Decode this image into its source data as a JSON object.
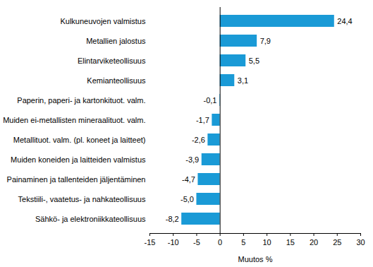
{
  "chart_data": {
    "type": "bar",
    "orientation": "horizontal",
    "categories": [
      "Kulkuneuvojen valmistus",
      "Metallien jalostus",
      "Elintarviketeollisuus",
      "Kemianteollisuus",
      "Paperin, paperi- ja kartonkituot. valm.",
      "Muiden ei-metallisten mineraalituot. valm.",
      "Metallituot. valm. (pl. koneet ja laitteet)",
      "Muiden koneiden ja laitteiden valmistus",
      "Painaminen ja tallenteiden jäljentäminen",
      "Tekstiili-, vaatetus- ja nahkateollisuus",
      "Sähkö- ja elektroniikkateollisuus"
    ],
    "values": [
      24.4,
      7.9,
      5.5,
      3.1,
      -0.1,
      -1.7,
      -2.6,
      -3.9,
      -4.7,
      -5.0,
      -8.2
    ],
    "value_labels": [
      "24,4",
      "7,9",
      "5,5",
      "3,1",
      "-0,1",
      "-1,7",
      "-2,6",
      "-3,9",
      "-4,7",
      "-5,0",
      "-8,2"
    ],
    "data_labels": true,
    "color": "#1a9ad6",
    "x_label": "Muutos %",
    "xlim": [
      -15,
      30
    ],
    "xticks": [
      -15,
      -10,
      -5,
      0,
      5,
      10,
      15,
      20,
      25,
      30
    ],
    "grid": false
  }
}
